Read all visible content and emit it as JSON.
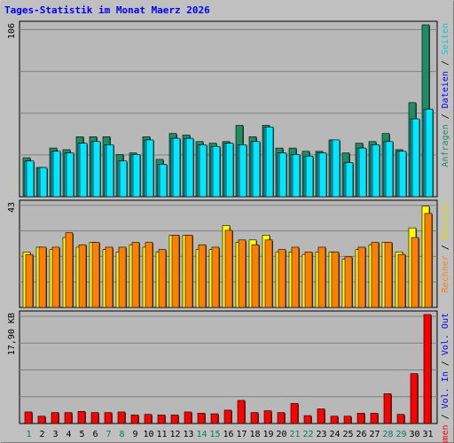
{
  "chart_data": [
    {
      "type": "bar",
      "title": "Tages-Statistik im Monat Maerz 2026",
      "categories": [
        "1",
        "2",
        "3",
        "4",
        "5",
        "6",
        "7",
        "8",
        "9",
        "10",
        "11",
        "12",
        "13",
        "14",
        "15",
        "16",
        "17",
        "18",
        "19",
        "20",
        "21",
        "22",
        "23",
        "24",
        "25",
        "26",
        "27",
        "28",
        "29",
        "30",
        "31"
      ],
      "weekend_categories": [
        "1",
        "7",
        "8",
        "14",
        "15",
        "21",
        "22",
        "28",
        "29"
      ],
      "y_max_label": "106",
      "ylim": [
        0,
        106
      ],
      "grid": true,
      "series": [
        {
          "name": "Anfragen",
          "color": "#1e8c64",
          "values": [
            24,
            18,
            30,
            29,
            37,
            37,
            37,
            26,
            27,
            37,
            23,
            39,
            38,
            34,
            33,
            34,
            44,
            37,
            44,
            30,
            30,
            28,
            28,
            35,
            27,
            33,
            34,
            39,
            29,
            58,
            106
          ]
        },
        {
          "name": "Dateien",
          "color": "#26b4d6",
          "values": [
            22,
            18,
            28,
            27,
            33,
            34,
            32,
            22,
            26,
            35,
            20,
            36,
            36,
            32,
            31,
            33,
            32,
            34,
            43,
            27,
            26,
            25,
            27,
            35,
            21,
            30,
            32,
            34,
            28,
            48,
            54
          ]
        },
        {
          "name": "Seiten",
          "color": "#00e8ff",
          "values": [
            22,
            18,
            28,
            27,
            33,
            34,
            32,
            22,
            26,
            35,
            20,
            36,
            36,
            32,
            31,
            33,
            32,
            34,
            43,
            27,
            26,
            25,
            27,
            35,
            21,
            30,
            32,
            34,
            28,
            48,
            54
          ]
        }
      ]
    },
    {
      "type": "bar",
      "y_max_label": "43",
      "ylim": [
        0,
        43
      ],
      "grid": true,
      "series": [
        {
          "name": "Besuche",
          "color": "#ffff00",
          "values": [
            23,
            25,
            24,
            29,
            25,
            27,
            24,
            23,
            26,
            25,
            23,
            30,
            30,
            24,
            24,
            34,
            27,
            28,
            30,
            23,
            23,
            22,
            23,
            23,
            20,
            24,
            26,
            27,
            23,
            33,
            42
          ]
        },
        {
          "name": "Rechner",
          "color": "#ff8000",
          "values": [
            22,
            25,
            25,
            31,
            26,
            27,
            25,
            25,
            27,
            27,
            24,
            30,
            30,
            26,
            25,
            32,
            28,
            26,
            28,
            24,
            25,
            23,
            25,
            23,
            21,
            25,
            27,
            27,
            22,
            29,
            39
          ]
        }
      ]
    },
    {
      "type": "bar",
      "y_max_label": "17,90 KB",
      "ylim": [
        0,
        17.9
      ],
      "grid": true,
      "series": [
        {
          "name": "Volumen",
          "color": "#ff0000",
          "values": [
            1.9,
            1.2,
            1.8,
            1.8,
            2.0,
            1.8,
            1.8,
            1.9,
            1.4,
            1.5,
            1.4,
            1.4,
            1.9,
            1.7,
            1.6,
            2.2,
            3.8,
            1.8,
            2.1,
            1.8,
            3.3,
            1.3,
            2.4,
            1.2,
            1.2,
            1.7,
            1.7,
            4.9,
            1.5,
            8.2,
            17.9
          ]
        },
        {
          "name": "Vol. In",
          "color": "#0000ff",
          "values": []
        },
        {
          "name": "Vol. Out",
          "color": "#0000ff",
          "values": []
        }
      ]
    }
  ],
  "axis_label_colors": {
    "weekday": "#000000",
    "weekend": "#00805a",
    "title": "#0000ff"
  }
}
